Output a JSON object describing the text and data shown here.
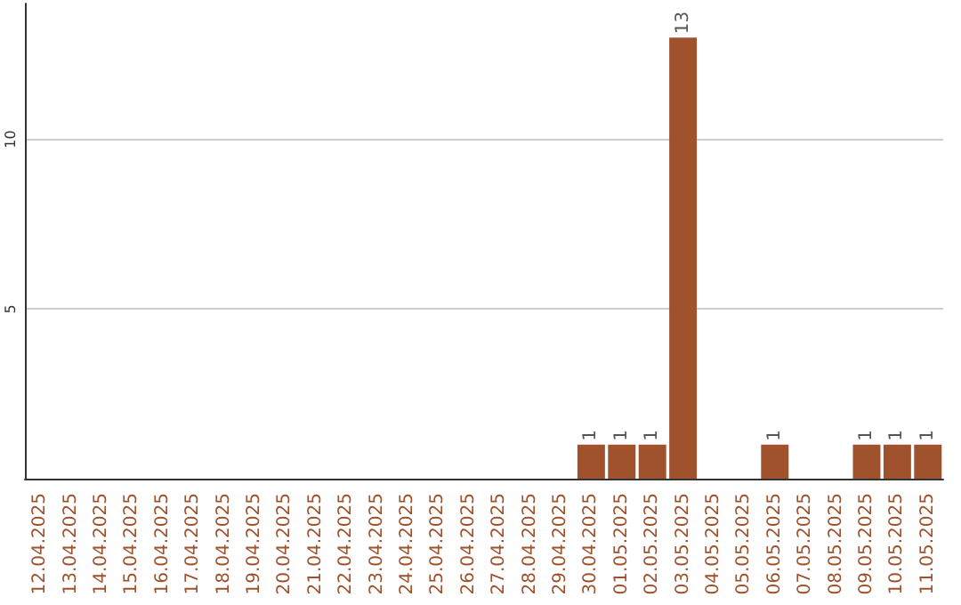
{
  "chart_data": {
    "type": "bar",
    "categories": [
      "12.04.2025",
      "13.04.2025",
      "14.04.2025",
      "15.04.2025",
      "16.04.2025",
      "17.04.2025",
      "18.04.2025",
      "19.04.2025",
      "20.04.2025",
      "21.04.2025",
      "22.04.2025",
      "23.04.2025",
      "24.04.2025",
      "25.04.2025",
      "26.04.2025",
      "27.04.2025",
      "28.04.2025",
      "29.04.2025",
      "30.04.2025",
      "01.05.2025",
      "02.05.2025",
      "03.05.2025",
      "04.05.2025",
      "05.05.2025",
      "06.05.2025",
      "07.05.2025",
      "08.05.2025",
      "09.05.2025",
      "10.05.2025",
      "11.05.2025"
    ],
    "values": [
      0,
      0,
      0,
      0,
      0,
      0,
      0,
      0,
      0,
      0,
      0,
      0,
      0,
      0,
      0,
      0,
      0,
      0,
      1,
      1,
      1,
      13,
      0,
      0,
      1,
      0,
      0,
      1,
      1,
      1
    ],
    "value_labels": [
      null,
      null,
      null,
      null,
      null,
      null,
      null,
      null,
      null,
      null,
      null,
      null,
      null,
      null,
      null,
      null,
      null,
      null,
      "1",
      "1",
      "1",
      "13",
      null,
      null,
      "1",
      null,
      null,
      "1",
      "1",
      "1"
    ],
    "color": "#a0522d",
    "ylim": [
      0,
      14
    ],
    "yticks": [
      5,
      10
    ],
    "grid": "y"
  }
}
